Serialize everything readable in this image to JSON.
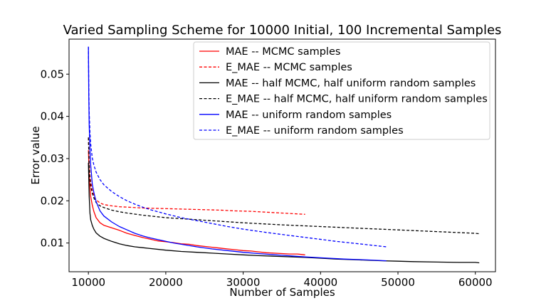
{
  "chart_data": {
    "type": "line",
    "title": "Varied Sampling Scheme for 10000 Initial, 100 Incremental Samples",
    "xlabel": "Number of Samples",
    "ylabel": "Error value",
    "xlim": [
      7500,
      62600
    ],
    "ylim": [
      0.0032,
      0.0583
    ],
    "xticks": [
      10000,
      20000,
      30000,
      40000,
      50000,
      60000
    ],
    "xtick_labels": [
      "10000",
      "20000",
      "30000",
      "40000",
      "50000",
      "60000"
    ],
    "yticks": [
      0.01,
      0.02,
      0.03,
      0.04,
      0.05
    ],
    "ytick_labels": [
      "0.01",
      "0.02",
      "0.03",
      "0.04",
      "0.05"
    ],
    "grid": false,
    "legend_position": "top-right",
    "series": [
      {
        "name": "MAE -- MCMC samples",
        "color": "#ff0000",
        "dash": "solid",
        "x": [
          10000,
          10100,
          10200,
          10300,
          10500,
          10700,
          11000,
          11500,
          12000,
          13000,
          14000,
          15000,
          16000,
          17000,
          18000,
          19000,
          20000,
          21000,
          22000,
          23000,
          24000,
          25000,
          26000,
          27000,
          28000,
          29000,
          30000,
          31000,
          32000,
          33000,
          34000,
          35000,
          36000,
          37000,
          37500,
          38000
        ],
        "y": [
          0.032,
          0.026,
          0.023,
          0.021,
          0.019,
          0.0175,
          0.016,
          0.0148,
          0.0142,
          0.0136,
          0.013,
          0.0123,
          0.0118,
          0.0113,
          0.0109,
          0.0105,
          0.0103,
          0.0101,
          0.0098,
          0.0097,
          0.0094,
          0.0092,
          0.009,
          0.0088,
          0.0086,
          0.0084,
          0.0082,
          0.0081,
          0.0079,
          0.0077,
          0.0076,
          0.0075,
          0.0074,
          0.0074,
          0.0073,
          0.0072
        ]
      },
      {
        "name": "E_MAE -- MCMC samples",
        "color": "#ff0000",
        "dash": "dashed",
        "x": [
          10000,
          10100,
          10200,
          10300,
          10500,
          10700,
          11000,
          11500,
          12000,
          13000,
          14000,
          15000,
          17000,
          19000,
          21000,
          23000,
          25000,
          27000,
          29000,
          31000,
          33000,
          35000,
          37000,
          38000
        ],
        "y": [
          0.035,
          0.029,
          0.026,
          0.0245,
          0.0225,
          0.0212,
          0.0202,
          0.0195,
          0.0191,
          0.0188,
          0.0186,
          0.0185,
          0.0183,
          0.0182,
          0.0181,
          0.018,
          0.0179,
          0.0178,
          0.0176,
          0.0175,
          0.0173,
          0.0171,
          0.0169,
          0.0168
        ]
      },
      {
        "name": "MAE -- half MCMC, half uniform random samples",
        "color": "#000000",
        "dash": "solid",
        "x": [
          10000,
          10100,
          10200,
          10300,
          10500,
          10700,
          11000,
          11500,
          12000,
          13000,
          14000,
          15000,
          16000,
          17000,
          18000,
          20000,
          22000,
          24000,
          26000,
          28000,
          30000,
          32000,
          35000,
          38000,
          40000,
          42000,
          45000,
          48000,
          50000,
          52000,
          55000,
          58000,
          60000,
          60500
        ],
        "y": [
          0.029,
          0.021,
          0.017,
          0.0155,
          0.0142,
          0.0133,
          0.0124,
          0.0116,
          0.0111,
          0.0104,
          0.0098,
          0.0094,
          0.0091,
          0.0089,
          0.0087,
          0.0083,
          0.008,
          0.0078,
          0.0076,
          0.0074,
          0.0072,
          0.007,
          0.0068,
          0.0066,
          0.0064,
          0.0062,
          0.006,
          0.0058,
          0.0057,
          0.0056,
          0.0055,
          0.0054,
          0.0054,
          0.0053
        ]
      },
      {
        "name": "E_MAE -- half MCMC, half uniform random samples",
        "color": "#000000",
        "dash": "dashed",
        "x": [
          10000,
          10100,
          10200,
          10300,
          10500,
          10700,
          11000,
          11500,
          12000,
          13000,
          14000,
          15000,
          17000,
          20000,
          25000,
          30000,
          35000,
          40000,
          45000,
          50000,
          55000,
          60000,
          60500
        ],
        "y": [
          0.035,
          0.028,
          0.025,
          0.0235,
          0.0218,
          0.0207,
          0.0196,
          0.0188,
          0.0184,
          0.0178,
          0.0174,
          0.0171,
          0.0166,
          0.016,
          0.0154,
          0.0148,
          0.0143,
          0.0139,
          0.0135,
          0.0131,
          0.0127,
          0.0123,
          0.0122
        ]
      },
      {
        "name": "MAE -- uniform random samples",
        "color": "#0000ff",
        "dash": "solid",
        "x": [
          10000,
          10050,
          10100,
          10200,
          10300,
          10500,
          10700,
          11000,
          11500,
          12000,
          13000,
          14000,
          15000,
          16000,
          17000,
          18000,
          19000,
          20000,
          21000,
          22000,
          24000,
          26000,
          28000,
          30000,
          32000,
          35000,
          38000,
          40000,
          43000,
          46000,
          48500
        ],
        "y": [
          0.0565,
          0.045,
          0.038,
          0.032,
          0.0285,
          0.024,
          0.022,
          0.0198,
          0.0176,
          0.0164,
          0.015,
          0.0139,
          0.0131,
          0.0123,
          0.0117,
          0.0112,
          0.0108,
          0.0104,
          0.01,
          0.0097,
          0.0091,
          0.0086,
          0.0082,
          0.0078,
          0.0075,
          0.0071,
          0.0067,
          0.0065,
          0.0062,
          0.006,
          0.0058
        ]
      },
      {
        "name": "E_MAE -- uniform random samples",
        "color": "#0000ff",
        "dash": "dashed",
        "x": [
          10000,
          10050,
          10100,
          10200,
          10300,
          10500,
          10700,
          11000,
          11500,
          12000,
          13000,
          14000,
          15000,
          16000,
          17000,
          18000,
          20000,
          22000,
          24000,
          26000,
          28000,
          30000,
          33000,
          36000,
          39000,
          42000,
          45000,
          48500
        ],
        "y": [
          0.0565,
          0.047,
          0.041,
          0.036,
          0.0335,
          0.0302,
          0.0285,
          0.0268,
          0.025,
          0.0238,
          0.0222,
          0.021,
          0.02,
          0.0192,
          0.0185,
          0.0179,
          0.0169,
          0.016,
          0.0153,
          0.0146,
          0.0139,
          0.0133,
          0.0125,
          0.0118,
          0.0111,
          0.0104,
          0.0098,
          0.0091
        ]
      }
    ]
  }
}
